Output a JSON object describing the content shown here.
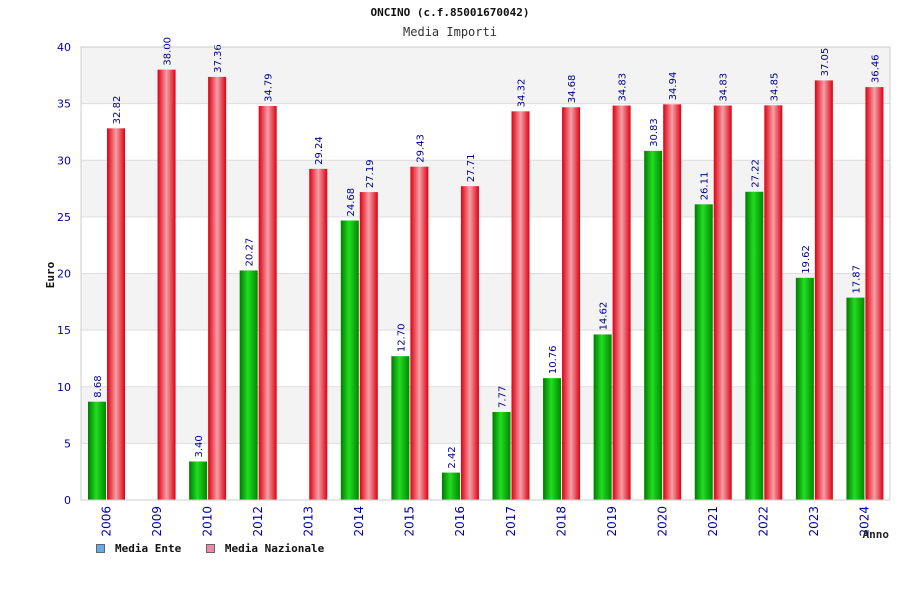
{
  "chart_data": {
    "type": "bar",
    "title": "ONCINO (c.f.85001670042)",
    "subtitle": "Media Importi",
    "xlabel": "Anno",
    "ylabel": "Euro",
    "ylim": [
      0,
      40
    ],
    "yticks": [
      0,
      5,
      10,
      15,
      20,
      25,
      30,
      35,
      40
    ],
    "grid": true,
    "legend_position": "bottom-left",
    "categories": [
      "2006",
      "2009",
      "2010",
      "2012",
      "2013",
      "2014",
      "2015",
      "2016",
      "2017",
      "2018",
      "2019",
      "2020",
      "2021",
      "2022",
      "2023",
      "2024"
    ],
    "series": [
      {
        "name": "Media Ente",
        "color": "#00bb00",
        "values": [
          8.68,
          null,
          3.4,
          20.27,
          null,
          24.68,
          12.7,
          2.42,
          7.77,
          10.76,
          14.62,
          30.83,
          26.11,
          27.22,
          19.62,
          17.87
        ],
        "labels": [
          "8.68",
          "",
          "3.40",
          "20.27",
          "",
          "24.68",
          "12.70",
          "2.42",
          "7.77",
          "10.76",
          "14.62",
          "30.83",
          "26.11",
          "27.22",
          "19.62",
          "17.87"
        ]
      },
      {
        "name": "Media Nazionale",
        "color": "#ee2233",
        "values": [
          32.82,
          38.0,
          37.36,
          34.79,
          29.24,
          27.19,
          29.43,
          27.71,
          34.32,
          34.68,
          34.83,
          34.94,
          34.83,
          34.85,
          37.05,
          36.46
        ],
        "labels": [
          "32.82",
          "38.00",
          "37.36",
          "34.79",
          "29.24",
          "27.19",
          "29.43",
          "27.71",
          "34.32",
          "34.68",
          "34.83",
          "34.94",
          "34.83",
          "34.85",
          "37.05",
          "36.46"
        ]
      }
    ]
  },
  "legend": {
    "items": [
      {
        "label": "Media Ente",
        "color": "#66aaee"
      },
      {
        "label": "Media Nazionale",
        "color": "#ee88aa"
      }
    ]
  }
}
